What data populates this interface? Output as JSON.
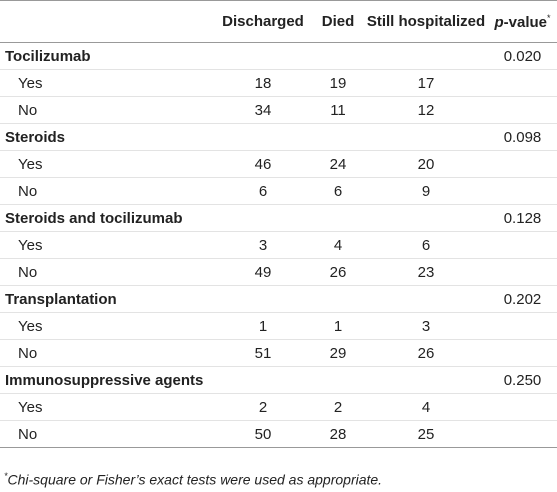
{
  "table": {
    "columns": [
      "Discharged",
      "Died",
      "Still hospitalized"
    ],
    "p_value_label": "p-value",
    "p_value_mark": "*",
    "groups": [
      {
        "name": "Tocilizumab",
        "p_value": "0.020",
        "rows": [
          {
            "label": "Yes",
            "values": [
              "18",
              "19",
              "17"
            ]
          },
          {
            "label": "No",
            "values": [
              "34",
              "11",
              "12"
            ]
          }
        ]
      },
      {
        "name": "Steroids",
        "p_value": "0.098",
        "rows": [
          {
            "label": "Yes",
            "values": [
              "46",
              "24",
              "20"
            ]
          },
          {
            "label": "No",
            "values": [
              "6",
              "6",
              "9"
            ]
          }
        ]
      },
      {
        "name": "Steroids and tocilizumab",
        "p_value": "0.128",
        "rows": [
          {
            "label": "Yes",
            "values": [
              "3",
              "4",
              "6"
            ]
          },
          {
            "label": "No",
            "values": [
              "49",
              "26",
              "23"
            ]
          }
        ]
      },
      {
        "name": "Transplantation",
        "p_value": "0.202",
        "rows": [
          {
            "label": "Yes",
            "values": [
              "1",
              "1",
              "3"
            ]
          },
          {
            "label": "No",
            "values": [
              "51",
              "29",
              "26"
            ]
          }
        ]
      },
      {
        "name": "Immunosuppressive agents",
        "p_value": "0.250",
        "rows": [
          {
            "label": "Yes",
            "values": [
              "2",
              "2",
              "4"
            ]
          },
          {
            "label": "No",
            "values": [
              "50",
              "28",
              "25"
            ]
          }
        ]
      }
    ]
  },
  "footnote": {
    "mark": "*",
    "text": "Chi-square or Fisher’s exact tests were used as appropriate."
  }
}
